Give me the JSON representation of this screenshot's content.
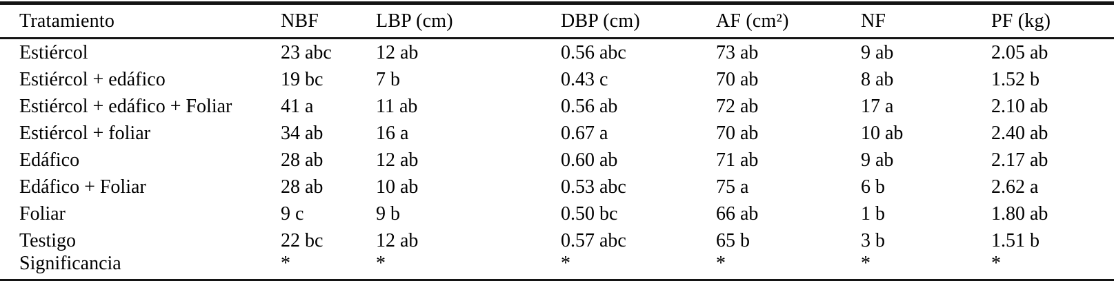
{
  "table": {
    "columns": [
      "Tratamiento",
      "NBF",
      "LBP (cm)",
      "DBP (cm)",
      "AF (cm²)",
      "NF",
      "PF (kg)"
    ],
    "rows": [
      [
        "Estiércol",
        "23 abc",
        "12 ab",
        "0.56 abc",
        "73 ab",
        "9 ab",
        "2.05 ab"
      ],
      [
        "Estiércol + edáfico",
        "19 bc",
        "7 b",
        "0.43 c",
        "70 ab",
        "8 ab",
        "1.52 b"
      ],
      [
        "Estiércol + edáfico + Foliar",
        "41 a",
        "11 ab",
        "0.56 ab",
        "72 ab",
        "17 a",
        "2.10 ab"
      ],
      [
        "Estiércol + foliar",
        "34 ab",
        "16 a",
        "0.67 a",
        "70 ab",
        "10 ab",
        "2.40 ab"
      ],
      [
        "Edáfico",
        "28 ab",
        "12 ab",
        "0.60 ab",
        "71 ab",
        "9 ab",
        "2.17 ab"
      ],
      [
        "Edáfico + Foliar",
        "28 ab",
        "10 ab",
        "0.53 abc",
        "75 a",
        "6 b",
        "2.62 a"
      ],
      [
        "Foliar",
        "9 c",
        "9 b",
        "0.50 bc",
        "66 ab",
        "1 b",
        "1.80 ab"
      ],
      [
        "Testigo",
        "22 bc",
        "12 ab",
        "0.57 abc",
        "65 b",
        "3 b",
        "1.51 b"
      ],
      [
        "Significancia",
        "*",
        "*",
        "*",
        "*",
        "*",
        "*"
      ]
    ]
  },
  "colors": {
    "text": "#000000",
    "border": "#141414",
    "background": "#ffffff"
  }
}
